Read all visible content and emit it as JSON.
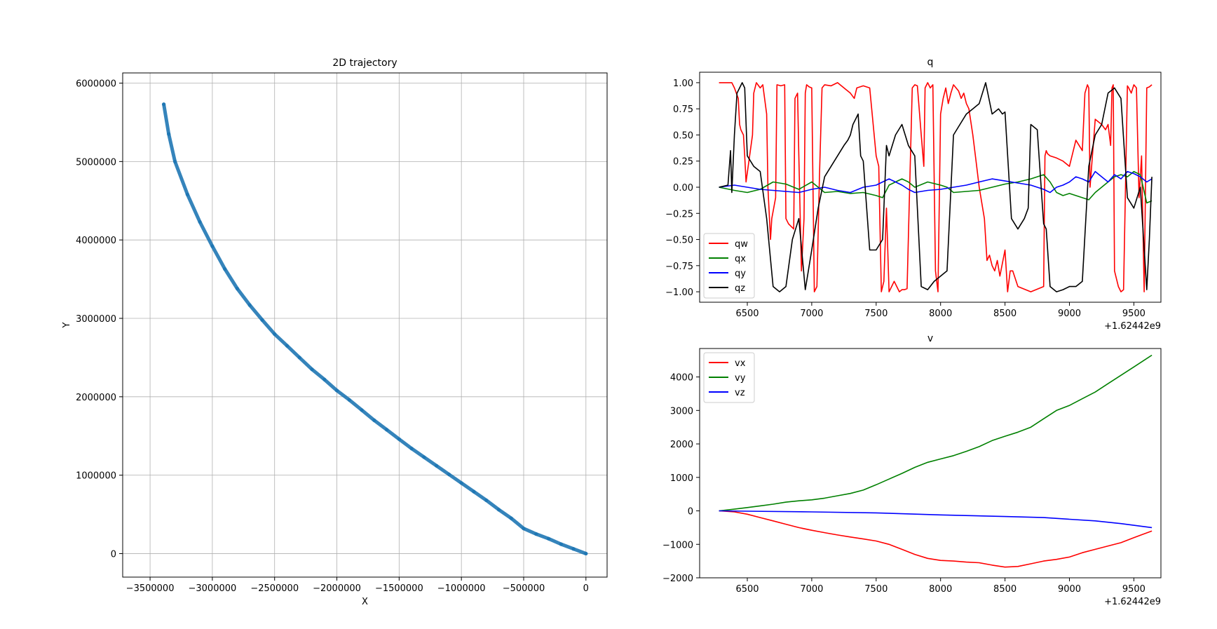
{
  "chart_data": [
    {
      "id": "traj",
      "type": "scatter",
      "title": "2D trajectory",
      "xlabel": "X",
      "ylabel": "Y",
      "grid": true,
      "xlim": [
        -3720000,
        170000
      ],
      "ylim": [
        -300000,
        6130000
      ],
      "xticks": [
        -3500000,
        -3000000,
        -2500000,
        -2000000,
        -1500000,
        -1000000,
        -500000,
        0
      ],
      "xtick_labels": [
        "−3500000",
        "−3000000",
        "−2500000",
        "−2000000",
        "−1500000",
        "−1000000",
        "−500000",
        "0"
      ],
      "yticks": [
        0,
        1000000,
        2000000,
        3000000,
        4000000,
        5000000,
        6000000
      ],
      "ytick_labels": [
        "0",
        "1000000",
        "2000000",
        "3000000",
        "4000000",
        "5000000",
        "6000000"
      ],
      "series": [
        {
          "color": "#1f77b4",
          "x": [
            0,
            -100000,
            -200000,
            -300000,
            -400000,
            -500000,
            -600000,
            -700000,
            -800000,
            -900000,
            -1000000,
            -1100000,
            -1200000,
            -1300000,
            -1400000,
            -1500000,
            -1600000,
            -1700000,
            -1800000,
            -1900000,
            -2000000,
            -2100000,
            -2200000,
            -2300000,
            -2400000,
            -2500000,
            -2600000,
            -2700000,
            -2800000,
            -2900000,
            -3000000,
            -3100000,
            -3200000,
            -3300000,
            -3350000,
            -3390000
          ],
          "y": [
            0,
            60000,
            120000,
            190000,
            250000,
            320000,
            450000,
            560000,
            680000,
            790000,
            900000,
            1010000,
            1120000,
            1230000,
            1340000,
            1460000,
            1580000,
            1700000,
            1830000,
            1960000,
            2080000,
            2220000,
            2350000,
            2500000,
            2650000,
            2800000,
            2980000,
            3170000,
            3380000,
            3630000,
            3920000,
            4230000,
            4580000,
            5000000,
            5350000,
            5730000
          ]
        }
      ]
    },
    {
      "id": "q",
      "type": "line",
      "title": "q",
      "offset_label": "+1.62442e9",
      "xlim": [
        6130,
        9710
      ],
      "ylim": [
        -1.1,
        1.1
      ],
      "xticks": [
        6500,
        7000,
        7500,
        8000,
        8500,
        9000,
        9500
      ],
      "xtick_labels": [
        "6500",
        "7000",
        "7500",
        "8000",
        "8500",
        "9000",
        "9500"
      ],
      "yticks": [
        1.0,
        0.75,
        0.5,
        0.25,
        0.0,
        -0.25,
        -0.5,
        -0.75,
        -1.0
      ],
      "ytick_labels": [
        "1.00",
        "0.75",
        "0.50",
        "0.25",
        "0.00",
        "−0.25",
        "−0.50",
        "−0.75",
        "−1.00"
      ],
      "legend_position": "lower-left",
      "series": [
        {
          "name": "qw",
          "color": "#ff0000",
          "x": [
            6280,
            6380,
            6400,
            6430,
            6440,
            6450,
            6470,
            6480,
            6490,
            6540,
            6550,
            6570,
            6600,
            6620,
            6650,
            6660,
            6680,
            6690,
            6720,
            6730,
            6760,
            6790,
            6800,
            6820,
            6860,
            6870,
            6890,
            6900,
            6920,
            6940,
            6950,
            6960,
            6980,
            7000,
            7020,
            7040,
            7060,
            7080,
            7100,
            7150,
            7200,
            7250,
            7300,
            7330,
            7350,
            7400,
            7450,
            7500,
            7520,
            7540,
            7560,
            7580,
            7600,
            7620,
            7640,
            7660,
            7680,
            7700,
            7720,
            7740,
            7760,
            7780,
            7800,
            7820,
            7850,
            7870,
            7880,
            7900,
            7920,
            7940,
            7960,
            7980,
            8000,
            8020,
            8040,
            8060,
            8080,
            8100,
            8120,
            8140,
            8160,
            8180,
            8200,
            8220,
            8250,
            8280,
            8300,
            8340,
            8360,
            8380,
            8400,
            8420,
            8440,
            8460,
            8500,
            8520,
            8540,
            8560,
            8600,
            8700,
            8800,
            8810,
            8820,
            8830,
            8850,
            8900,
            8950,
            9000,
            9050,
            9100,
            9120,
            9140,
            9150,
            9160,
            9200,
            9250,
            9280,
            9300,
            9320,
            9330,
            9340,
            9350,
            9380,
            9400,
            9420,
            9450,
            9460,
            9480,
            9500,
            9520,
            9540,
            9560,
            9580,
            9600,
            9620,
            9640
          ],
          "y": [
            1.0,
            1.0,
            0.95,
            0.85,
            0.6,
            0.55,
            0.5,
            0.3,
            0.05,
            0.5,
            0.9,
            1.0,
            0.95,
            0.98,
            0.7,
            0.0,
            -0.5,
            -0.3,
            -0.1,
            0.98,
            0.97,
            0.98,
            -0.3,
            -0.35,
            -0.4,
            0.85,
            0.9,
            0.3,
            -0.8,
            -0.3,
            0.9,
            0.98,
            0.96,
            0.95,
            -1.0,
            -0.95,
            0.1,
            0.95,
            0.98,
            0.97,
            1.0,
            0.95,
            0.9,
            0.85,
            0.95,
            0.97,
            0.95,
            0.3,
            0.2,
            -1.0,
            -0.9,
            -0.2,
            -1.0,
            -0.95,
            -0.9,
            -0.95,
            -1.0,
            -0.98,
            -0.98,
            -0.97,
            0.0,
            0.95,
            0.98,
            0.97,
            0.5,
            0.2,
            0.95,
            1.0,
            0.95,
            0.98,
            -0.8,
            -1.0,
            0.7,
            0.85,
            0.95,
            0.8,
            0.9,
            0.98,
            0.95,
            0.92,
            0.85,
            0.9,
            0.8,
            0.75,
            0.5,
            0.2,
            0.0,
            -0.3,
            -0.7,
            -0.65,
            -0.75,
            -0.8,
            -0.7,
            -0.85,
            -0.6,
            -1.0,
            -0.8,
            -0.8,
            -0.95,
            -1.0,
            -0.95,
            0.3,
            0.35,
            0.32,
            0.3,
            0.28,
            0.25,
            0.2,
            0.45,
            0.35,
            0.9,
            0.98,
            0.95,
            0.0,
            0.65,
            0.6,
            0.55,
            0.6,
            0.4,
            0.95,
            0.98,
            -0.8,
            -0.95,
            -1.0,
            -0.98,
            0.97,
            0.95,
            0.9,
            0.98,
            0.95,
            -0.1,
            0.3,
            -1.0,
            0.95,
            0.96,
            0.98
          ]
        },
        {
          "name": "qx",
          "color": "#008000",
          "x": [
            6280,
            6400,
            6500,
            6600,
            6700,
            6800,
            6900,
            7000,
            7050,
            7100,
            7200,
            7300,
            7400,
            7500,
            7550,
            7600,
            7650,
            7700,
            7750,
            7800,
            7900,
            8000,
            8050,
            8100,
            8200,
            8300,
            8400,
            8500,
            8600,
            8700,
            8800,
            8850,
            8900,
            8950,
            9000,
            9100,
            9150,
            9200,
            9300,
            9350,
            9400,
            9450,
            9500,
            9550,
            9600,
            9640
          ],
          "y": [
            0.0,
            -0.03,
            -0.05,
            -0.02,
            0.05,
            0.03,
            -0.02,
            0.05,
            0.0,
            -0.05,
            -0.04,
            -0.06,
            -0.05,
            -0.08,
            -0.1,
            0.02,
            0.05,
            0.08,
            0.05,
            0.0,
            0.05,
            0.02,
            0.0,
            -0.05,
            -0.04,
            -0.03,
            0.0,
            0.03,
            0.05,
            0.08,
            0.12,
            0.05,
            -0.05,
            -0.08,
            -0.06,
            -0.1,
            -0.12,
            -0.05,
            0.05,
            0.1,
            0.12,
            0.1,
            0.15,
            0.12,
            -0.15,
            -0.13
          ]
        },
        {
          "name": "qy",
          "color": "#0000ff",
          "x": [
            6280,
            6400,
            6500,
            6600,
            6700,
            6800,
            6900,
            7000,
            7100,
            7200,
            7300,
            7400,
            7500,
            7550,
            7600,
            7650,
            7700,
            7750,
            7800,
            7900,
            8000,
            8100,
            8200,
            8300,
            8400,
            8500,
            8600,
            8700,
            8800,
            8850,
            8900,
            8950,
            9000,
            9050,
            9100,
            9150,
            9200,
            9250,
            9300,
            9350,
            9400,
            9450,
            9500,
            9550,
            9600,
            9640
          ],
          "y": [
            0.0,
            0.02,
            0.0,
            -0.02,
            -0.03,
            -0.04,
            -0.05,
            -0.02,
            0.0,
            -0.03,
            -0.05,
            0.0,
            0.02,
            0.05,
            0.08,
            0.05,
            0.02,
            -0.02,
            -0.05,
            -0.03,
            -0.02,
            0.0,
            0.02,
            0.05,
            0.08,
            0.06,
            0.04,
            0.02,
            -0.02,
            -0.05,
            0.0,
            0.02,
            0.05,
            0.1,
            0.08,
            0.05,
            0.15,
            0.1,
            0.05,
            0.12,
            0.08,
            0.15,
            0.13,
            0.1,
            0.05,
            0.08
          ]
        },
        {
          "name": "qz",
          "color": "#000000",
          "x": [
            6280,
            6350,
            6370,
            6380,
            6400,
            6420,
            6440,
            6460,
            6480,
            6500,
            6550,
            6600,
            6650,
            6700,
            6750,
            6800,
            6850,
            6900,
            6950,
            7000,
            7050,
            7100,
            7150,
            7200,
            7250,
            7280,
            7300,
            7320,
            7340,
            7360,
            7380,
            7400,
            7450,
            7500,
            7550,
            7580,
            7600,
            7650,
            7700,
            7750,
            7800,
            7850,
            7900,
            7950,
            8000,
            8050,
            8100,
            8150,
            8200,
            8250,
            8300,
            8350,
            8400,
            8450,
            8480,
            8500,
            8550,
            8600,
            8650,
            8680,
            8700,
            8750,
            8800,
            8820,
            8850,
            8900,
            8950,
            9000,
            9050,
            9100,
            9150,
            9200,
            9250,
            9300,
            9350,
            9400,
            9450,
            9500,
            9550,
            9600,
            9620,
            9640
          ],
          "y": [
            0.0,
            0.02,
            0.35,
            -0.05,
            0.5,
            0.9,
            0.95,
            1.0,
            0.95,
            0.3,
            0.2,
            0.15,
            -0.3,
            -0.95,
            -1.0,
            -0.95,
            -0.5,
            -0.3,
            -0.98,
            -0.6,
            -0.2,
            0.1,
            0.2,
            0.3,
            0.4,
            0.45,
            0.5,
            0.6,
            0.65,
            0.7,
            0.3,
            0.25,
            -0.6,
            -0.6,
            -0.5,
            0.4,
            0.3,
            0.5,
            0.6,
            0.4,
            0.3,
            -0.95,
            -0.98,
            -0.9,
            -0.85,
            -0.8,
            0.5,
            0.6,
            0.7,
            0.75,
            0.8,
            1.0,
            0.7,
            0.75,
            0.7,
            0.72,
            -0.3,
            -0.4,
            -0.3,
            -0.2,
            0.6,
            0.55,
            -0.35,
            -0.4,
            -0.95,
            -1.0,
            -0.98,
            -0.95,
            -0.95,
            -0.9,
            0.2,
            0.5,
            0.6,
            0.9,
            0.95,
            0.85,
            -0.1,
            -0.2,
            0.0,
            -0.98,
            -0.5,
            0.1
          ]
        }
      ]
    },
    {
      "id": "v",
      "type": "line",
      "title": "v",
      "offset_label": "+1.62442e9",
      "xlim": [
        6130,
        9710
      ],
      "ylim": [
        -2000,
        4850
      ],
      "xticks": [
        6500,
        7000,
        7500,
        8000,
        8500,
        9000,
        9500
      ],
      "xtick_labels": [
        "6500",
        "7000",
        "7500",
        "8000",
        "8500",
        "9000",
        "9500"
      ],
      "yticks": [
        4000,
        3000,
        2000,
        1000,
        0,
        -1000,
        -2000
      ],
      "ytick_labels": [
        "4000",
        "3000",
        "2000",
        "1000",
        "0",
        "−1000",
        "−2000"
      ],
      "legend_position": "upper-left",
      "series": [
        {
          "name": "vx",
          "color": "#ff0000",
          "x": [
            6280,
            6400,
            6500,
            6600,
            6700,
            6800,
            6900,
            7000,
            7100,
            7200,
            7300,
            7400,
            7500,
            7600,
            7700,
            7800,
            7900,
            8000,
            8100,
            8200,
            8300,
            8400,
            8500,
            8600,
            8700,
            8800,
            8900,
            9000,
            9100,
            9200,
            9300,
            9400,
            9500,
            9640
          ],
          "y": [
            0,
            -30,
            -100,
            -200,
            -300,
            -400,
            -500,
            -580,
            -650,
            -720,
            -780,
            -840,
            -900,
            -1000,
            -1150,
            -1300,
            -1420,
            -1480,
            -1500,
            -1530,
            -1550,
            -1620,
            -1680,
            -1660,
            -1580,
            -1500,
            -1450,
            -1380,
            -1250,
            -1150,
            -1050,
            -950,
            -800,
            -600
          ]
        },
        {
          "name": "vy",
          "color": "#008000",
          "x": [
            6280,
            6400,
            6500,
            6600,
            6700,
            6800,
            6900,
            7000,
            7100,
            7200,
            7300,
            7400,
            7500,
            7600,
            7700,
            7800,
            7900,
            8000,
            8100,
            8200,
            8300,
            8400,
            8500,
            8600,
            8700,
            8800,
            8900,
            9000,
            9100,
            9200,
            9300,
            9400,
            9500,
            9640
          ],
          "y": [
            0,
            50,
            100,
            150,
            200,
            260,
            300,
            330,
            380,
            450,
            520,
            620,
            780,
            950,
            1120,
            1300,
            1450,
            1550,
            1650,
            1780,
            1920,
            2100,
            2230,
            2350,
            2500,
            2750,
            3000,
            3150,
            3350,
            3550,
            3800,
            4050,
            4300,
            4650
          ]
        },
        {
          "name": "vz",
          "color": "#0000ff",
          "x": [
            6280,
            6500,
            7000,
            7500,
            8000,
            8500,
            8800,
            9000,
            9200,
            9400,
            9640
          ],
          "y": [
            0,
            -10,
            -30,
            -60,
            -120,
            -170,
            -200,
            -250,
            -300,
            -380,
            -500
          ]
        }
      ]
    }
  ]
}
